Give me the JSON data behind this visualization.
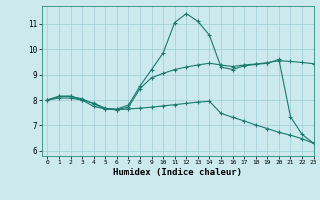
{
  "xlabel": "Humidex (Indice chaleur)",
  "background_color": "#cce9ee",
  "grid_color": "#9fcdd6",
  "line_color": "#1a7a6e",
  "xlim": [
    -0.5,
    23
  ],
  "ylim": [
    5.8,
    11.7
  ],
  "yticks": [
    6,
    7,
    8,
    9,
    10,
    11
  ],
  "xticks": [
    0,
    1,
    2,
    3,
    4,
    5,
    6,
    7,
    8,
    9,
    10,
    11,
    12,
    13,
    14,
    15,
    16,
    17,
    18,
    19,
    20,
    21,
    22,
    23
  ],
  "line1_x": [
    0,
    1,
    2,
    3,
    4,
    5,
    6,
    7,
    8,
    9,
    10,
    11,
    12,
    13,
    14,
    15,
    16,
    17,
    18,
    19,
    20,
    21,
    22,
    23
  ],
  "line1_y": [
    8.0,
    8.15,
    8.15,
    8.0,
    7.75,
    7.65,
    7.65,
    7.8,
    8.55,
    9.2,
    9.85,
    11.05,
    11.4,
    11.1,
    10.55,
    9.3,
    9.2,
    9.35,
    9.4,
    9.45,
    9.6,
    7.35,
    6.65,
    6.3
  ],
  "line2_x": [
    0,
    1,
    2,
    3,
    4,
    5,
    6,
    7,
    8,
    9,
    10,
    11,
    12,
    13,
    14,
    15,
    16,
    17,
    18,
    19,
    20,
    21,
    22,
    23
  ],
  "line2_y": [
    8.0,
    8.15,
    8.15,
    8.05,
    7.85,
    7.65,
    7.62,
    7.72,
    8.45,
    8.88,
    9.05,
    9.2,
    9.3,
    9.38,
    9.45,
    9.38,
    9.32,
    9.38,
    9.42,
    9.47,
    9.55,
    9.52,
    9.48,
    9.43
  ],
  "line3_x": [
    0,
    1,
    2,
    3,
    4,
    5,
    6,
    7,
    8,
    9,
    10,
    11,
    12,
    13,
    14,
    15,
    16,
    17,
    18,
    19,
    20,
    21,
    22,
    23
  ],
  "line3_y": [
    8.0,
    8.08,
    8.08,
    8.0,
    7.88,
    7.68,
    7.62,
    7.65,
    7.68,
    7.72,
    7.77,
    7.82,
    7.87,
    7.92,
    7.95,
    7.48,
    7.32,
    7.18,
    7.02,
    6.88,
    6.73,
    6.62,
    6.48,
    6.3
  ]
}
